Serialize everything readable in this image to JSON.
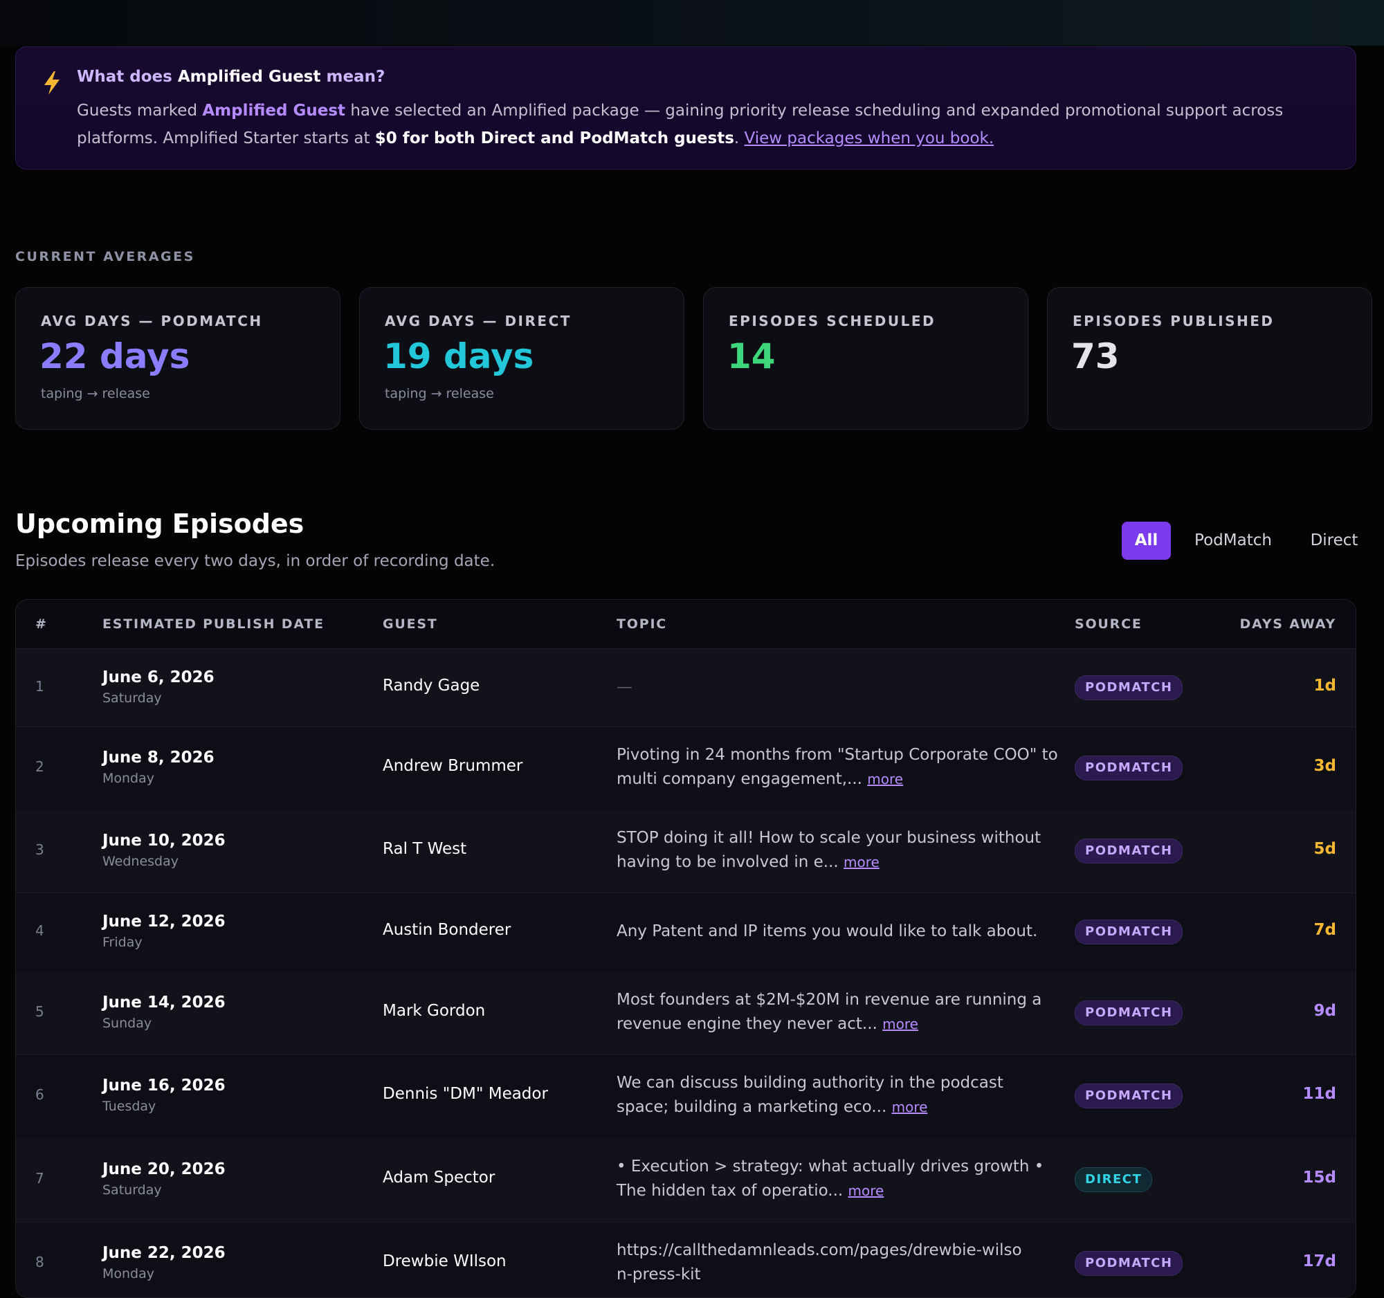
{
  "banner": {
    "title_pre": "What does ",
    "title_strong": "Amplified Guest",
    "title_post": " mean?",
    "body_1": "Guests marked ",
    "body_amp": "Amplified Guest",
    "body_2": " have selected an Amplified package — gaining priority release scheduling and expanded promotional support across platforms. Amplified Starter starts at ",
    "body_bold": "$0 for both Direct and PodMatch guests",
    "body_3": ". ",
    "link": "View packages when you book."
  },
  "averages": {
    "section_label": "CURRENT AVERAGES",
    "cards": [
      {
        "label": "AVG DAYS — PODMATCH",
        "value": "22 days",
        "sub": "taping → release",
        "color": "#8b7dff"
      },
      {
        "label": "AVG DAYS — DIRECT",
        "value": "19 days",
        "sub": "taping → release",
        "color": "#22c7d9"
      },
      {
        "label": "EPISODES SCHEDULED",
        "value": "14",
        "sub": "",
        "color": "#3ed67a"
      },
      {
        "label": "EPISODES PUBLISHED",
        "value": "73",
        "sub": "",
        "color": "#e4e4ea"
      }
    ]
  },
  "upcoming": {
    "title": "Upcoming Episodes",
    "subtitle": "Episodes release every two days, in order of recording date.",
    "filters": [
      "All",
      "PodMatch",
      "Direct"
    ],
    "active_filter": "All"
  },
  "table": {
    "headers": [
      "#",
      "ESTIMATED PUBLISH DATE",
      "GUEST",
      "TOPIC",
      "SOURCE",
      "DAYS AWAY"
    ],
    "rows": [
      {
        "num": "1",
        "date": "June 6, 2026",
        "day": "Saturday",
        "guest": "Randy Gage",
        "topic": "—",
        "more": "",
        "source": "PODMATCH",
        "days": "1d",
        "days_color": "#f5b731"
      },
      {
        "num": "2",
        "date": "June 8, 2026",
        "day": "Monday",
        "guest": "Andrew Brummer",
        "topic": "Pivoting in 24 months from \"Startup Corporate COO\" to multi company engagement,...",
        "more": "more",
        "source": "PODMATCH",
        "days": "3d",
        "days_color": "#f5b731"
      },
      {
        "num": "3",
        "date": "June 10, 2026",
        "day": "Wednesday",
        "guest": "Ral T West",
        "topic": "STOP doing it all! How to scale your business without having to be involved in e...",
        "more": "more",
        "source": "PODMATCH",
        "days": "5d",
        "days_color": "#f5b731"
      },
      {
        "num": "4",
        "date": "June 12, 2026",
        "day": "Friday",
        "guest": "Austin Bonderer",
        "topic": "Any Patent and IP items you would like to talk about.",
        "more": "",
        "source": "PODMATCH",
        "days": "7d",
        "days_color": "#f5b731"
      },
      {
        "num": "5",
        "date": "June 14, 2026",
        "day": "Sunday",
        "guest": "Mark Gordon",
        "topic": "Most founders at $2M-$20M in revenue are running a revenue engine they never act...",
        "more": "more",
        "source": "PODMATCH",
        "days": "9d",
        "days_color": "#b58bff"
      },
      {
        "num": "6",
        "date": "June 16, 2026",
        "day": "Tuesday",
        "guest": "Dennis \"DM\" Meador",
        "topic": "We can discuss building authority in the podcast space; building a marketing eco...",
        "more": "more",
        "source": "PODMATCH",
        "days": "11d",
        "days_color": "#b58bff"
      },
      {
        "num": "7",
        "date": "June 20, 2026",
        "day": "Saturday",
        "guest": "Adam Spector",
        "topic": "• Execution > strategy: what actually drives growth • The hidden tax of operatio...",
        "more": "more",
        "source": "DIRECT",
        "days": "15d",
        "days_color": "#b58bff"
      },
      {
        "num": "8",
        "date": "June 22, 2026",
        "day": "Monday",
        "guest": "Drewbie WIlson",
        "topic": "https://callthedamnleads.com/pages/drewbie-wilson-press-kit",
        "more": "",
        "source": "PODMATCH",
        "days": "17d",
        "days_color": "#b58bff"
      }
    ]
  },
  "colors": {
    "accent": "#7c3aed",
    "podmatch_badge": "#c7a8ff",
    "direct_badge": "#33d3e6",
    "bolt": "#f5b731"
  },
  "icons": {
    "banner_icon": "lightning-bolt-icon"
  }
}
